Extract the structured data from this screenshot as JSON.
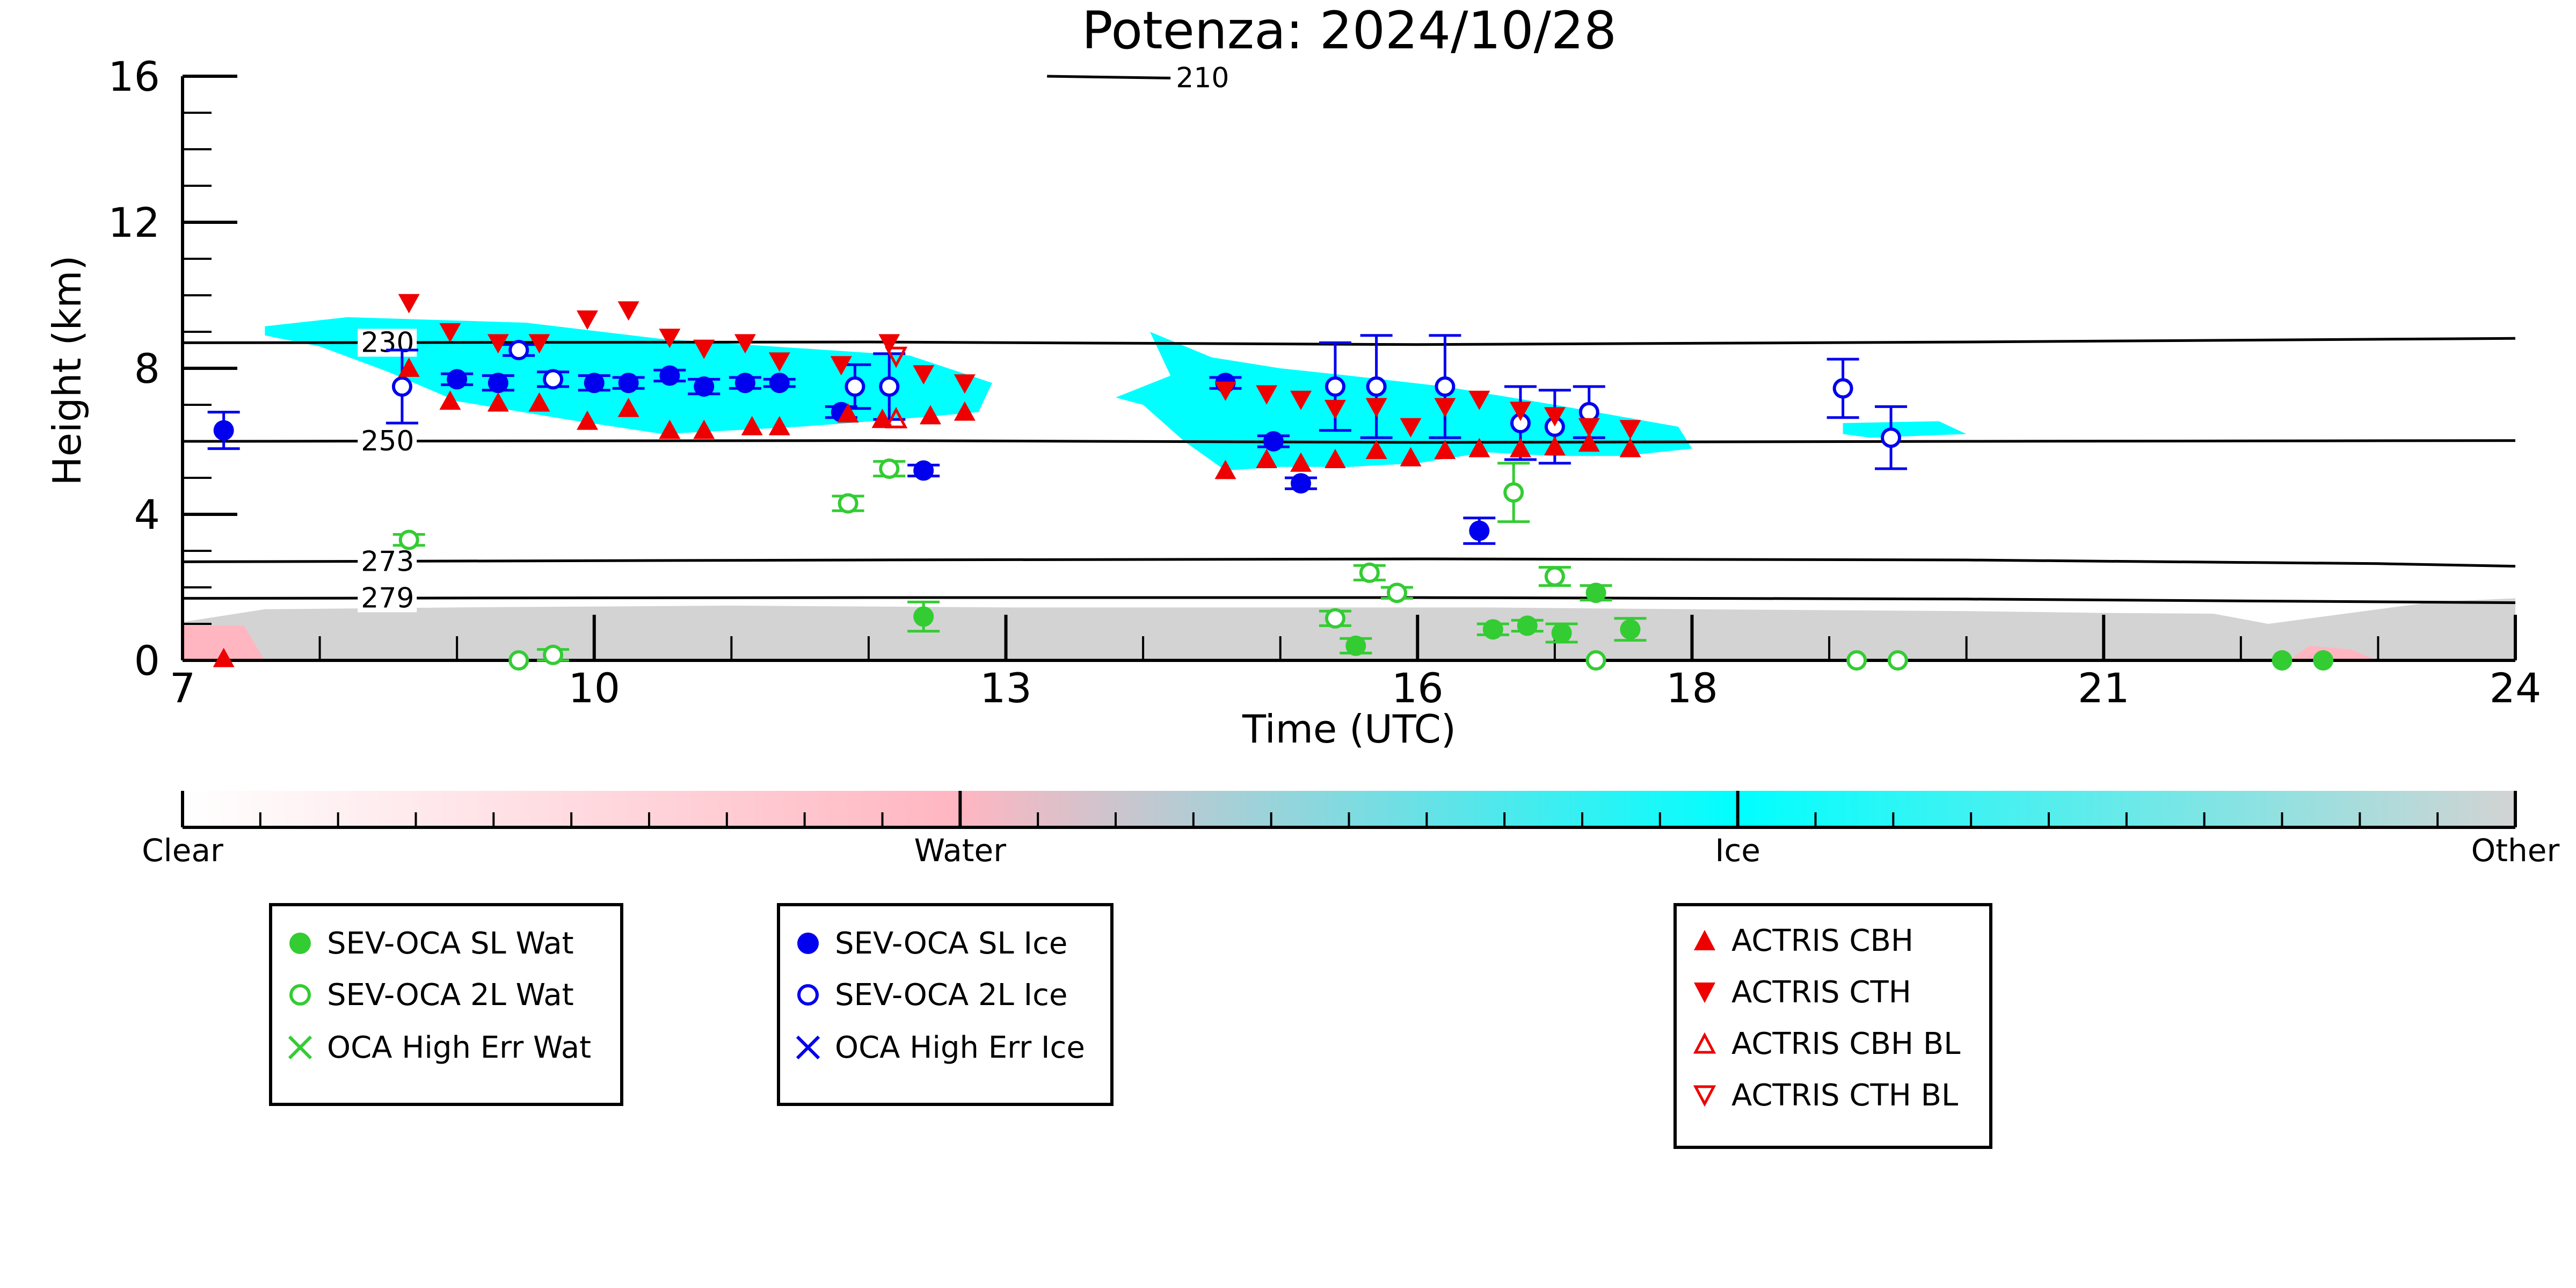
{
  "chart_data": {
    "type": "scatter",
    "title": "Potenza: 2024/10/28",
    "xlabel": "Time (UTC)",
    "ylabel": "Height (km)",
    "xlim": [
      7,
      24
    ],
    "ylim": [
      0,
      16
    ],
    "xticks": [
      7,
      10,
      13,
      16,
      18,
      21,
      24
    ],
    "yticks": [
      0,
      4,
      8,
      12,
      16
    ],
    "grid": false,
    "colors": {
      "water_marker": "#33cc33",
      "ice_marker": "#0000ee",
      "actris": "#ee0000",
      "cloud_ice": "#00ffff",
      "cloud_water": "#ffb6c1",
      "cloud_other": "#d3d3d3",
      "isotherm": "#000000"
    },
    "isotherms": [
      {
        "label": "210",
        "points": [
          [
            13.3,
            16.0
          ],
          [
            14.2,
            15.95
          ]
        ]
      },
      {
        "label": "230",
        "points": [
          [
            7,
            8.7
          ],
          [
            12,
            8.72
          ],
          [
            16,
            8.65
          ],
          [
            20,
            8.72
          ],
          [
            24,
            8.82
          ]
        ]
      },
      {
        "label": "250",
        "points": [
          [
            7,
            6.0
          ],
          [
            12,
            6.02
          ],
          [
            16,
            5.97
          ],
          [
            20,
            6.0
          ],
          [
            24,
            6.02
          ]
        ]
      },
      {
        "label": "273",
        "points": [
          [
            7,
            2.7
          ],
          [
            12,
            2.75
          ],
          [
            16,
            2.78
          ],
          [
            20,
            2.75
          ],
          [
            23,
            2.65
          ],
          [
            24,
            2.58
          ]
        ]
      },
      {
        "label": "279",
        "points": [
          [
            7,
            1.7
          ],
          [
            12,
            1.72
          ],
          [
            16,
            1.72
          ],
          [
            20,
            1.68
          ],
          [
            24,
            1.58
          ]
        ]
      }
    ],
    "cloud_classification": {
      "ice_regions": [
        [
          [
            7.6,
            9.15
          ],
          [
            8.2,
            9.4
          ],
          [
            9.5,
            9.25
          ],
          [
            10.5,
            8.8
          ],
          [
            11.5,
            8.55
          ],
          [
            12.3,
            8.35
          ],
          [
            12.9,
            7.6
          ],
          [
            12.8,
            6.8
          ],
          [
            12.2,
            6.6
          ],
          [
            11.5,
            6.4
          ],
          [
            10.5,
            6.2
          ],
          [
            9.8,
            6.6
          ],
          [
            9.0,
            7.1
          ],
          [
            8.5,
            7.9
          ],
          [
            8.0,
            8.6
          ],
          [
            7.6,
            8.9
          ]
        ],
        [
          [
            14.05,
            9.0
          ],
          [
            14.5,
            8.3
          ],
          [
            15.0,
            8.0
          ],
          [
            15.5,
            7.8
          ],
          [
            16.2,
            7.5
          ],
          [
            17.0,
            7.0
          ],
          [
            17.9,
            6.4
          ],
          [
            18.0,
            5.8
          ],
          [
            17.5,
            5.6
          ],
          [
            17.0,
            5.6
          ],
          [
            16.5,
            5.7
          ],
          [
            16.0,
            5.4
          ],
          [
            15.5,
            5.3
          ],
          [
            15.0,
            5.3
          ],
          [
            14.6,
            5.2
          ],
          [
            14.3,
            6.0
          ],
          [
            14.0,
            7.0
          ],
          [
            13.8,
            7.2
          ],
          [
            14.2,
            7.8
          ]
        ],
        [
          [
            19.1,
            6.5
          ],
          [
            19.8,
            6.55
          ],
          [
            20.0,
            6.2
          ],
          [
            19.3,
            6.1
          ],
          [
            19.1,
            6.2
          ]
        ]
      ],
      "other_regions": [
        [
          [
            7.0,
            0
          ],
          [
            7.0,
            1.05
          ],
          [
            7.6,
            1.4
          ],
          [
            9.0,
            1.45
          ],
          [
            11.0,
            1.5
          ],
          [
            13.0,
            1.45
          ],
          [
            15.0,
            1.45
          ],
          [
            16.5,
            1.45
          ],
          [
            18.0,
            1.4
          ],
          [
            20.0,
            1.35
          ],
          [
            21.0,
            1.3
          ],
          [
            21.8,
            1.28
          ],
          [
            22.2,
            1.0
          ],
          [
            22.8,
            1.3
          ],
          [
            23.4,
            1.6
          ],
          [
            24.0,
            1.7
          ],
          [
            24.0,
            0
          ]
        ]
      ],
      "water_regions": [
        [
          [
            7.0,
            0
          ],
          [
            7.0,
            0.95
          ],
          [
            7.45,
            0.95
          ],
          [
            7.55,
            0.3
          ],
          [
            7.6,
            0
          ]
        ],
        [
          [
            22.35,
            0
          ],
          [
            22.5,
            0.4
          ],
          [
            22.8,
            0.3
          ],
          [
            23.0,
            0
          ]
        ]
      ]
    },
    "series": [
      {
        "name": "SEV-OCA SL Wat",
        "marker": "filled-circle",
        "color": "#33cc33",
        "points": [
          [
            12.4,
            1.2,
            0.4
          ],
          [
            15.55,
            0.4,
            0.2
          ],
          [
            16.55,
            0.85,
            0.15
          ],
          [
            16.8,
            0.95,
            0.15
          ],
          [
            17.05,
            0.75,
            0.25
          ],
          [
            17.3,
            1.85,
            0.2
          ],
          [
            17.55,
            0.85,
            0.3
          ],
          [
            22.3,
            0.0,
            0.0
          ],
          [
            22.6,
            0.0,
            0.0
          ]
        ]
      },
      {
        "name": "SEV-OCA 2L Wat",
        "marker": "open-circle",
        "color": "#33cc33",
        "points": [
          [
            8.65,
            3.3,
            0.15
          ],
          [
            9.45,
            0.0,
            0.0
          ],
          [
            9.7,
            0.15,
            0.15
          ],
          [
            11.85,
            4.3,
            0.2
          ],
          [
            12.15,
            5.25,
            0.2
          ],
          [
            15.4,
            1.15,
            0.2
          ],
          [
            15.65,
            2.4,
            0.2
          ],
          [
            15.85,
            1.85,
            0.15
          ],
          [
            16.7,
            4.6,
            0.8
          ],
          [
            17.0,
            2.3,
            0.25
          ],
          [
            17.3,
            0.0,
            0.0
          ],
          [
            19.2,
            0.0,
            0.0
          ],
          [
            19.5,
            0.0,
            0.0
          ]
        ]
      },
      {
        "name": "SEV-OCA SL Ice",
        "marker": "filled-circle",
        "color": "#0000ee",
        "points": [
          [
            7.3,
            6.3,
            0.5
          ],
          [
            9.0,
            7.7,
            0.15
          ],
          [
            9.3,
            7.6,
            0.2
          ],
          [
            10.0,
            7.6,
            0.2
          ],
          [
            10.25,
            7.6,
            0.15
          ],
          [
            10.55,
            7.8,
            0.15
          ],
          [
            10.8,
            7.5,
            0.2
          ],
          [
            11.1,
            7.6,
            0.15
          ],
          [
            11.35,
            7.6,
            0.1
          ],
          [
            11.8,
            6.8,
            0.15
          ],
          [
            12.4,
            5.2,
            0.15
          ],
          [
            14.6,
            7.6,
            0.15
          ],
          [
            14.95,
            6.0,
            0.15
          ],
          [
            15.15,
            4.85,
            0.15
          ],
          [
            16.45,
            3.55,
            0.35
          ]
        ]
      },
      {
        "name": "SEV-OCA 2L Ice",
        "marker": "open-circle",
        "color": "#0000ee",
        "points": [
          [
            8.6,
            7.5,
            1.0
          ],
          [
            9.45,
            8.5,
            0.15
          ],
          [
            9.7,
            7.7,
            0.2
          ],
          [
            11.9,
            7.5,
            0.6
          ],
          [
            12.15,
            7.5,
            0.9
          ],
          [
            15.4,
            7.5,
            1.2
          ],
          [
            15.7,
            7.5,
            1.4
          ],
          [
            16.2,
            7.5,
            1.4
          ],
          [
            16.75,
            6.5,
            1.0
          ],
          [
            17.0,
            6.4,
            1.0
          ],
          [
            17.25,
            6.8,
            0.7
          ],
          [
            19.1,
            7.45,
            0.8
          ],
          [
            19.45,
            6.1,
            0.85
          ]
        ]
      },
      {
        "name": "OCA High Err Wat",
        "marker": "x",
        "color": "#33cc33",
        "points": []
      },
      {
        "name": "OCA High Err Ice",
        "marker": "x",
        "color": "#0000ee",
        "points": []
      },
      {
        "name": "ACTRIS CBH",
        "marker": "triangle-up",
        "color": "#ee0000",
        "points": [
          [
            7.3,
            0.05
          ],
          [
            8.65,
            8.0
          ],
          [
            8.95,
            7.1
          ],
          [
            9.3,
            7.05
          ],
          [
            9.6,
            7.05
          ],
          [
            9.95,
            6.55
          ],
          [
            10.25,
            6.9
          ],
          [
            10.55,
            6.3
          ],
          [
            10.8,
            6.3
          ],
          [
            11.15,
            6.4
          ],
          [
            11.35,
            6.4
          ],
          [
            11.85,
            6.75
          ],
          [
            12.1,
            6.6
          ],
          [
            12.45,
            6.7
          ],
          [
            12.7,
            6.8
          ],
          [
            14.6,
            5.2
          ],
          [
            14.9,
            5.5
          ],
          [
            15.15,
            5.4
          ],
          [
            15.4,
            5.5
          ],
          [
            15.7,
            5.75
          ],
          [
            15.95,
            5.55
          ],
          [
            16.2,
            5.75
          ],
          [
            16.45,
            5.8
          ],
          [
            16.75,
            5.8
          ],
          [
            17.0,
            5.85
          ],
          [
            17.25,
            5.95
          ],
          [
            17.55,
            5.8
          ]
        ]
      },
      {
        "name": "ACTRIS CTH",
        "marker": "triangle-down",
        "color": "#ee0000",
        "points": [
          [
            8.65,
            9.8
          ],
          [
            8.95,
            9.0
          ],
          [
            9.3,
            8.7
          ],
          [
            9.6,
            8.7
          ],
          [
            9.95,
            9.35
          ],
          [
            10.25,
            9.6
          ],
          [
            10.55,
            8.85
          ],
          [
            10.8,
            8.55
          ],
          [
            11.1,
            8.7
          ],
          [
            11.35,
            8.2
          ],
          [
            11.8,
            8.1
          ],
          [
            12.15,
            8.7
          ],
          [
            12.4,
            7.85
          ],
          [
            12.7,
            7.6
          ],
          [
            14.6,
            7.4
          ],
          [
            14.9,
            7.3
          ],
          [
            15.15,
            7.15
          ],
          [
            15.4,
            6.9
          ],
          [
            15.7,
            6.95
          ],
          [
            15.95,
            6.4
          ],
          [
            16.2,
            6.95
          ],
          [
            16.45,
            7.15
          ],
          [
            16.75,
            6.85
          ],
          [
            17.0,
            6.7
          ],
          [
            17.25,
            6.4
          ],
          [
            17.55,
            6.35
          ]
        ]
      },
      {
        "name": "ACTRIS CBH BL",
        "marker": "open-triangle-up",
        "color": "#ee0000",
        "points": [
          [
            12.2,
            6.6
          ]
        ]
      },
      {
        "name": "ACTRIS CTH BL",
        "marker": "open-triangle-down",
        "color": "#ee0000",
        "points": [
          [
            12.2,
            8.35
          ]
        ]
      }
    ],
    "colorbar": {
      "labels": [
        "Clear",
        "Water",
        "Ice",
        "Other"
      ],
      "stops": [
        "#ffffff",
        "#ffb6c1",
        "#00ffff",
        "#d3d3d3"
      ]
    },
    "legends": [
      {
        "entries": [
          "SEV-OCA SL Wat",
          "SEV-OCA 2L Wat",
          "OCA High Err Wat"
        ]
      },
      {
        "entries": [
          "SEV-OCA SL Ice",
          "SEV-OCA 2L Ice",
          "OCA High Err Ice"
        ]
      },
      {
        "entries": [
          "ACTRIS CBH",
          "ACTRIS CTH",
          "ACTRIS CBH BL",
          "ACTRIS CTH BL"
        ]
      }
    ]
  }
}
